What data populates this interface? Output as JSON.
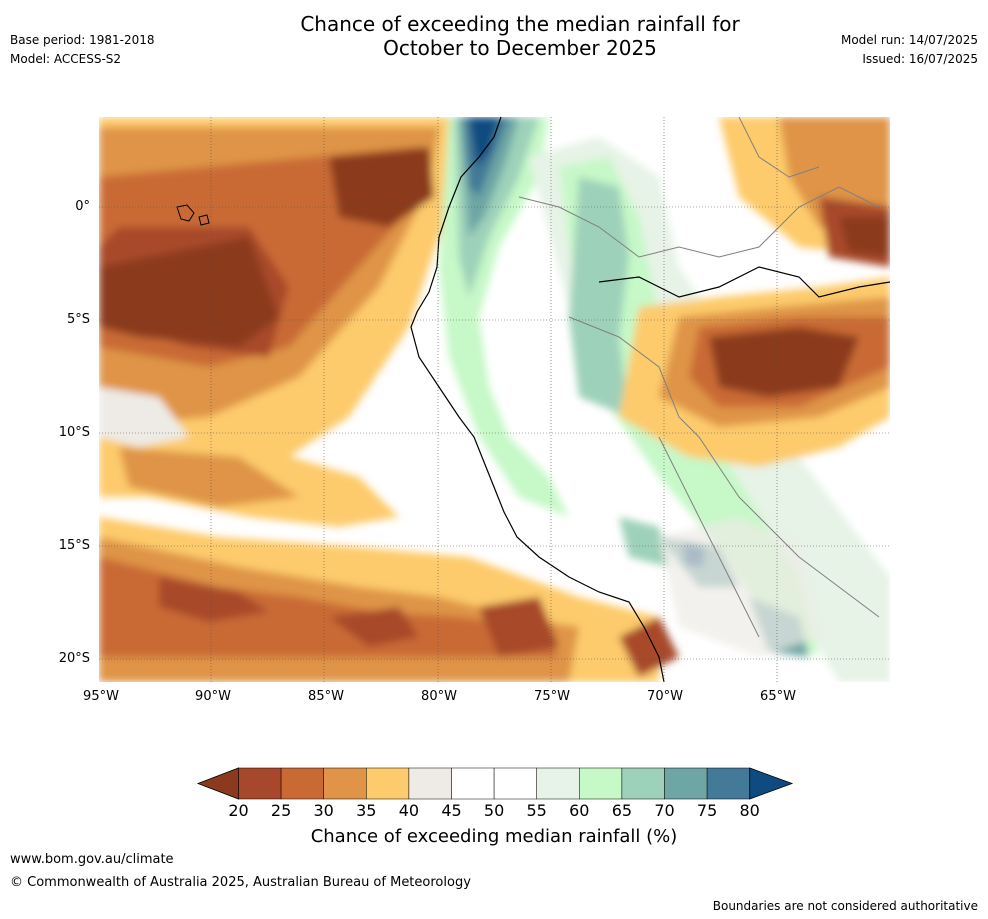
{
  "header": {
    "title_line1": "Chance of exceeding the median rainfall for",
    "title_line2": "October to December 2025",
    "base_period": "Base period: 1981-2018",
    "model": "Model: ACCESS-S2",
    "model_run": "Model run: 14/07/2025",
    "issued": "Issued: 16/07/2025"
  },
  "map": {
    "lat_labels": [
      "0°",
      "5°S",
      "10°S",
      "15°S",
      "20°S"
    ],
    "lon_labels": [
      "95°W",
      "90°W",
      "85°W",
      "80°W",
      "75°W",
      "70°W",
      "65°W"
    ]
  },
  "colorbar": {
    "title": "Chance of exceeding median rainfall (%)",
    "ticks": [
      "20",
      "25",
      "30",
      "35",
      "40",
      "45",
      "50",
      "55",
      "60",
      "65",
      "70",
      "75",
      "80"
    ],
    "colors": [
      "#8b3a1f",
      "#a8482a",
      "#c96a34",
      "#df9447",
      "#fdcb6c",
      "#eeebe6",
      "#ffffff",
      "#ffffff",
      "#e6f3e6",
      "#c6f8c8",
      "#9ed1b9",
      "#6da6a5",
      "#437a97",
      "#0f4b80"
    ]
  },
  "footer": {
    "website": "www.bom.gov.au/climate",
    "copyright": "© Commonwealth of Australia 2025, Australian Bureau of Meteorology",
    "disclaimer": "Boundaries are not considered authoritative"
  }
}
